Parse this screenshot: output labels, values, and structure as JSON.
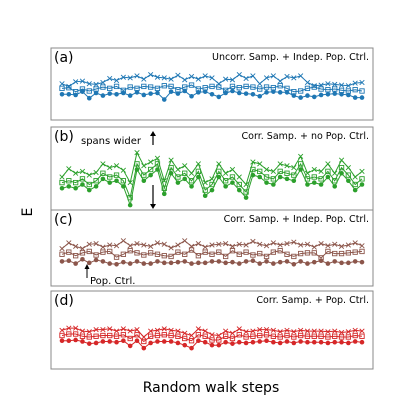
{
  "chart_data": {
    "type": "line",
    "xlabel": "Random walk steps",
    "ylabel": "E",
    "panels": [
      {
        "letter": "(a)",
        "description": "Uncorr. Samp. + Indep. Pop. Ctrl.",
        "color": "#1f77b4",
        "ylim": [
          0,
          7
        ],
        "x": [
          0,
          1,
          2,
          3,
          4,
          5,
          6,
          7,
          8,
          9,
          10,
          11,
          12,
          13,
          14,
          15,
          16,
          17,
          18,
          19,
          20,
          21,
          22,
          23,
          24,
          25,
          26,
          27,
          28,
          29,
          30,
          31,
          32,
          33,
          34,
          35,
          36,
          37,
          38,
          39,
          40,
          41,
          42,
          43,
          44
        ],
        "series": [
          {
            "marker": "x",
            "values": [
              4.6,
              4.2,
              4.9,
              5.0,
              4.6,
              4.5,
              4.8,
              5.4,
              5.1,
              5.6,
              5.5,
              5.8,
              5.3,
              6.0,
              5.6,
              5.5,
              5.3,
              5.9,
              5.2,
              5.7,
              5.3,
              5.8,
              5.5,
              4.6,
              5.3,
              5.2,
              6.0,
              5.4,
              5.8,
              4.6,
              5.5,
              5.8,
              5.0,
              5.7,
              5.5,
              5.8,
              4.8,
              4.3,
              4.4,
              4.6,
              4.5,
              4.4,
              4.3,
              4.7,
              4.8
            ]
          },
          {
            "marker": "square",
            "values": [
              3.9,
              4.0,
              3.4,
              3.8,
              3.5,
              3.8,
              4.1,
              3.9,
              4.2,
              3.6,
              4.1,
              3.9,
              4.2,
              4.1,
              3.9,
              4.3,
              4.2,
              3.7,
              4.1,
              4.4,
              3.8,
              4.0,
              4.2,
              4.1,
              3.6,
              4.2,
              4.0,
              4.2,
              4.1,
              3.8,
              4.1,
              4.0,
              4.3,
              3.9,
              3.4,
              3.5,
              3.9,
              4.1,
              3.8,
              3.7,
              3.8,
              3.6,
              3.5,
              3.7,
              3.5
            ]
          },
          {
            "marker": "circle",
            "values": [
              3.0,
              3.0,
              2.9,
              3.4,
              2.4,
              3.2,
              2.8,
              3.1,
              3.0,
              3.2,
              2.8,
              3.3,
              2.9,
              3.1,
              3.2,
              2.2,
              3.4,
              3.1,
              3.5,
              2.7,
              3.3,
              3.4,
              3.0,
              2.6,
              3.2,
              3.5,
              3.2,
              3.1,
              3.0,
              2.7,
              3.3,
              3.4,
              3.3,
              3.3,
              2.8,
              2.5,
              2.8,
              2.6,
              2.9,
              3.0,
              3.1,
              3.0,
              2.9,
              2.5,
              2.5
            ]
          }
        ]
      },
      {
        "letter": "(b)",
        "description": "Corr. Samp. + no Pop. Ctrl.",
        "color": "#2ca02c",
        "ylim": [
          -3,
          13
        ],
        "x": [
          0,
          1,
          2,
          3,
          4,
          5,
          6,
          7,
          8,
          9,
          10,
          11,
          12,
          13,
          14,
          15,
          16,
          17,
          18,
          19,
          20,
          21,
          22,
          23,
          24,
          25,
          26,
          27,
          28,
          29,
          30,
          31,
          32,
          33,
          34,
          35,
          36,
          37,
          38,
          39,
          40,
          41,
          42,
          43,
          44
        ],
        "series": [
          {
            "marker": "x",
            "values": [
              5.0,
              7.2,
              6.0,
              6.5,
              5.5,
              6.2,
              8.5,
              7.5,
              8.0,
              6.8,
              3.5,
              11.5,
              8.0,
              9.0,
              10.0,
              4.0,
              9.5,
              7.0,
              8.0,
              6.0,
              8.5,
              3.5,
              4.5,
              8.5,
              6.0,
              7.0,
              5.0,
              3.0,
              9.0,
              8.5,
              7.0,
              6.5,
              8.5,
              8.0,
              7.5,
              10.5,
              6.0,
              7.0,
              6.5,
              8.5,
              6.0,
              9.5,
              7.5,
              5.0,
              6.5
            ]
          },
          {
            "marker": "square",
            "values": [
              3.5,
              4.0,
              3.5,
              4.5,
              3.0,
              4.0,
              6.0,
              5.0,
              5.5,
              4.0,
              -0.5,
              8.5,
              5.5,
              7.0,
              8.5,
              2.0,
              7.5,
              5.0,
              6.0,
              4.0,
              6.5,
              1.5,
              3.0,
              6.5,
              4.0,
              5.0,
              3.0,
              1.0,
              7.0,
              6.5,
              5.0,
              4.5,
              6.5,
              6.0,
              5.5,
              8.5,
              4.5,
              5.0,
              4.5,
              6.5,
              4.0,
              7.5,
              5.5,
              3.0,
              4.5
            ]
          },
          {
            "marker": "circle",
            "values": [
              2.0,
              2.5,
              2.0,
              3.0,
              1.5,
              2.5,
              4.5,
              3.5,
              4.0,
              2.5,
              -2.5,
              7.0,
              4.0,
              5.5,
              7.0,
              0.5,
              6.0,
              3.5,
              4.5,
              2.5,
              5.0,
              0.0,
              1.5,
              5.0,
              2.5,
              3.5,
              1.5,
              -0.5,
              5.5,
              5.0,
              3.5,
              3.0,
              5.0,
              4.5,
              4.0,
              7.0,
              3.0,
              3.5,
              3.0,
              5.0,
              2.5,
              6.0,
              4.0,
              1.5,
              3.0
            ]
          }
        ],
        "annotation": "spans wider"
      },
      {
        "letter": "(c)",
        "description": "Corr. Samp. + Indep. Pop. Ctrl.",
        "color": "#8c564b",
        "ylim": [
          0,
          7
        ],
        "x": [
          0,
          1,
          2,
          3,
          4,
          5,
          6,
          7,
          8,
          9,
          10,
          11,
          12,
          13,
          14,
          15,
          16,
          17,
          18,
          19,
          20,
          21,
          22,
          23,
          24,
          25,
          26,
          27,
          28,
          29,
          30,
          31,
          32,
          33,
          34,
          35,
          36,
          37,
          38,
          39,
          40,
          41,
          42,
          43,
          44
        ],
        "series": [
          {
            "marker": "x",
            "values": [
              4.4,
              5.2,
              4.7,
              4.4,
              5.0,
              5.1,
              4.6,
              4.9,
              4.8,
              5.5,
              4.8,
              5.1,
              4.9,
              4.7,
              5.2,
              5.0,
              4.5,
              4.9,
              5.5,
              4.7,
              5.1,
              4.6,
              4.9,
              5.0,
              5.1,
              4.7,
              5.0,
              4.9,
              5.4,
              5.0,
              4.8,
              5.2,
              4.9,
              5.1,
              5.3,
              4.9,
              5.0,
              4.6,
              5.1,
              4.8,
              5.0,
              4.7,
              4.9,
              5.2,
              4.8
            ]
          },
          {
            "marker": "square",
            "values": [
              3.6,
              3.9,
              3.4,
              3.8,
              4.0,
              3.5,
              3.9,
              4.0,
              3.2,
              3.6,
              4.1,
              3.8,
              3.5,
              3.8,
              3.6,
              3.4,
              3.3,
              3.9,
              3.6,
              4.2,
              3.4,
              3.9,
              3.6,
              3.9,
              3.3,
              4.1,
              3.6,
              3.9,
              3.5,
              3.7,
              3.3,
              3.9,
              4.1,
              3.6,
              3.3,
              3.7,
              3.8,
              3.8,
              3.1,
              4.0,
              3.7,
              3.7,
              3.8,
              3.9,
              4.0
            ]
          },
          {
            "marker": "circle",
            "values": [
              2.6,
              2.7,
              2.3,
              2.9,
              2.4,
              2.8,
              2.6,
              2.3,
              2.2,
              2.5,
              2.3,
              2.6,
              2.3,
              2.3,
              2.6,
              2.4,
              2.4,
              2.5,
              2.6,
              2.3,
              2.4,
              2.4,
              2.6,
              2.6,
              2.4,
              2.5,
              2.3,
              2.6,
              2.7,
              2.3,
              2.6,
              2.3,
              2.5,
              2.6,
              2.2,
              2.6,
              2.3,
              2.5,
              2.7,
              2.3,
              2.6,
              2.4,
              2.4,
              2.6,
              2.5
            ]
          }
        ],
        "annotation": "Pop. Ctrl."
      },
      {
        "letter": "(d)",
        "description": "Corr. Samp. + Pop. Ctrl.",
        "color": "#d62728",
        "ylim": [
          0,
          7
        ],
        "x": [
          0,
          1,
          2,
          3,
          4,
          5,
          6,
          7,
          8,
          9,
          10,
          11,
          12,
          13,
          14,
          15,
          16,
          17,
          18,
          19,
          20,
          21,
          22,
          23,
          24,
          25,
          26,
          27,
          28,
          29,
          30,
          31,
          32,
          33,
          34,
          35,
          36,
          37,
          38,
          39,
          40,
          41,
          42,
          43,
          44
        ],
        "series": [
          {
            "marker": "x",
            "values": [
              4.4,
              4.7,
              4.7,
              4.3,
              4.2,
              4.5,
              4.5,
              4.6,
              4.3,
              4.6,
              4.3,
              4.5,
              3.5,
              4.3,
              4.4,
              4.6,
              4.4,
              4.3,
              4.0,
              3.7,
              4.6,
              4.3,
              3.8,
              3.7,
              4.3,
              4.0,
              4.6,
              4.2,
              4.3,
              4.5,
              4.5,
              4.4,
              4.2,
              4.4,
              4.2,
              4.4,
              4.3,
              4.3,
              4.3,
              4.2,
              4.3,
              4.1,
              4.2,
              4.4,
              4.3
            ]
          },
          {
            "marker": "square",
            "values": [
              3.7,
              3.9,
              3.9,
              3.6,
              3.5,
              3.6,
              3.7,
              3.7,
              3.6,
              3.8,
              3.3,
              3.8,
              2.9,
              3.6,
              3.7,
              3.8,
              3.7,
              3.6,
              3.3,
              3.0,
              3.8,
              3.6,
              3.1,
              3.1,
              3.6,
              3.3,
              3.8,
              3.5,
              3.6,
              3.7,
              3.8,
              3.6,
              3.5,
              3.7,
              3.5,
              3.7,
              3.6,
              3.6,
              3.6,
              3.5,
              3.6,
              3.5,
              3.5,
              3.7,
              3.6
            ]
          },
          {
            "marker": "circle",
            "values": [
              3.0,
              3.0,
              3.1,
              2.9,
              2.6,
              2.7,
              2.9,
              2.9,
              2.8,
              3.0,
              2.3,
              3.0,
              2.0,
              2.7,
              2.9,
              2.9,
              2.9,
              2.7,
              2.4,
              2.0,
              3.0,
              2.8,
              2.4,
              2.4,
              2.8,
              2.6,
              2.8,
              2.7,
              2.8,
              2.9,
              3.0,
              2.8,
              2.7,
              2.9,
              2.7,
              2.9,
              2.8,
              2.8,
              2.8,
              2.7,
              2.8,
              2.8,
              2.7,
              2.9,
              2.8
            ]
          }
        ]
      }
    ]
  }
}
